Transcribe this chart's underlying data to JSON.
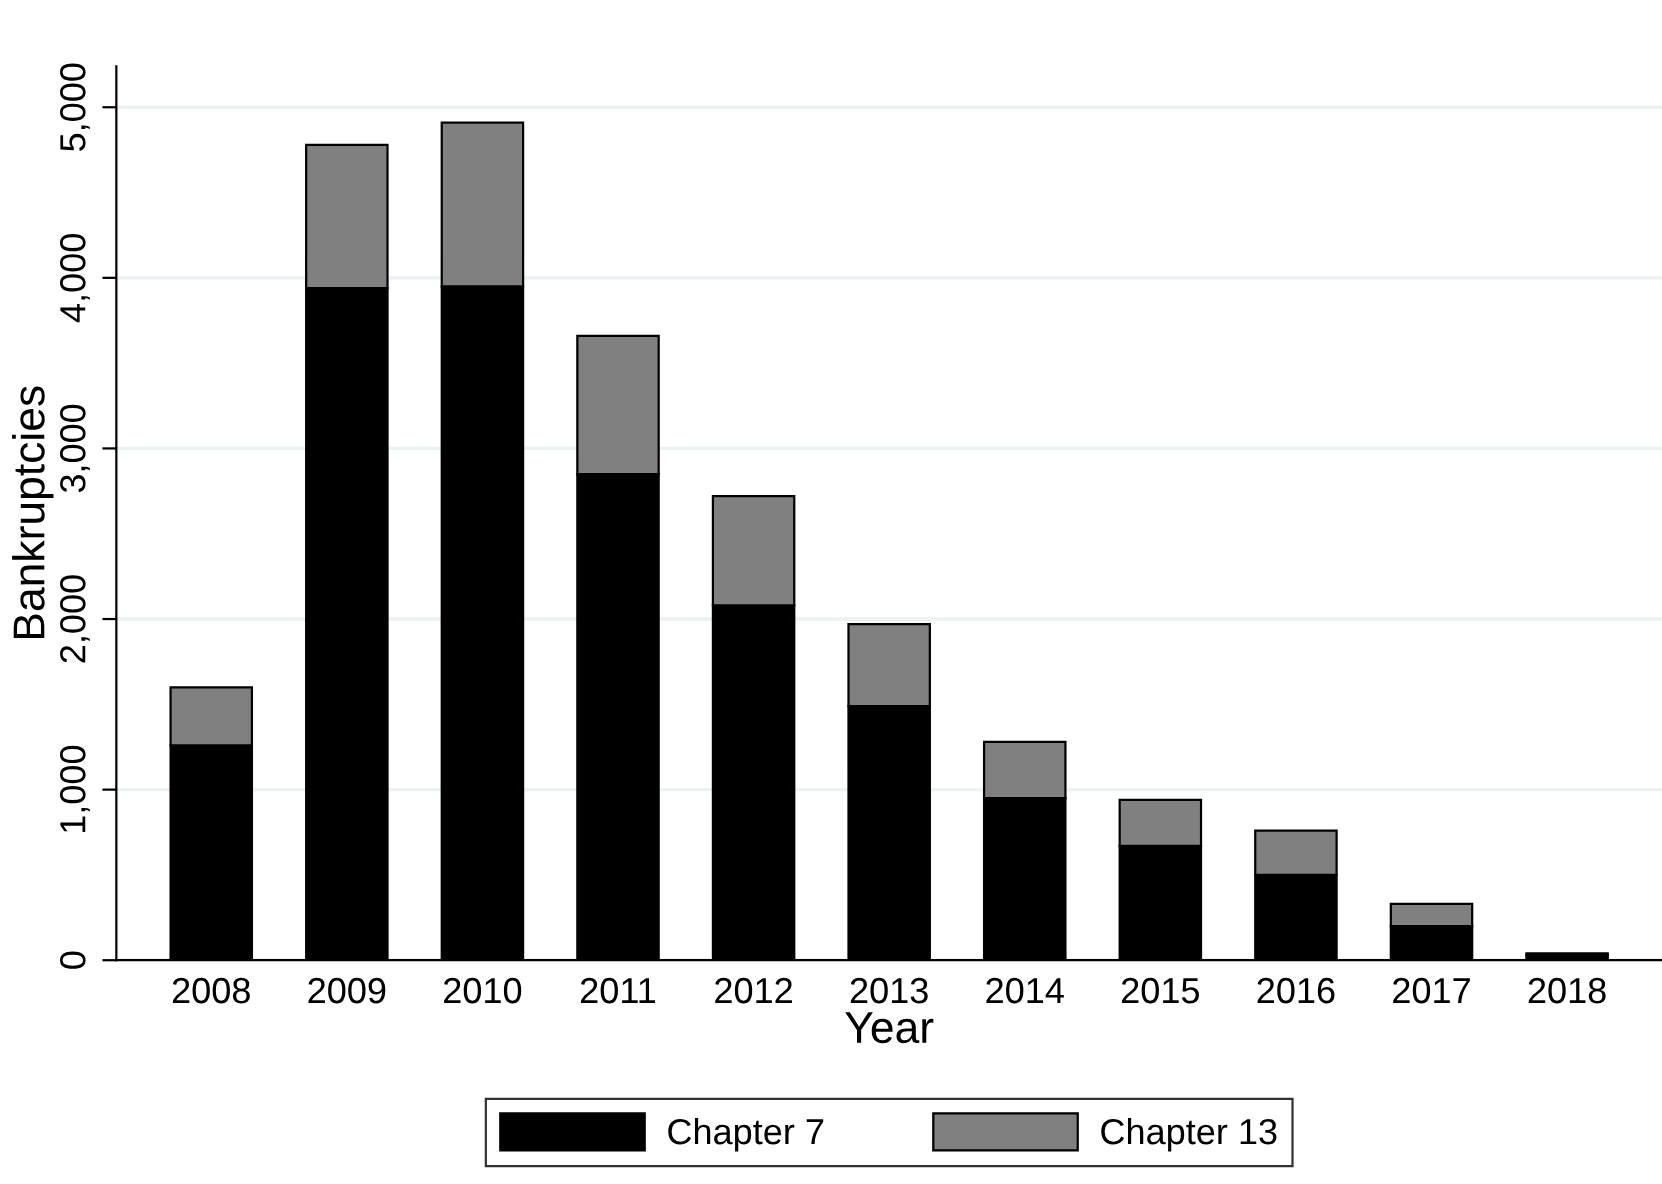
{
  "chart_data": {
    "type": "bar",
    "stacked": true,
    "xlabel": "Year",
    "ylabel": "Bankruptcies",
    "categories": [
      "2008",
      "2009",
      "2010",
      "2011",
      "2012",
      "2013",
      "2014",
      "2015",
      "2016",
      "2017",
      "2018"
    ],
    "series": [
      {
        "name": "Chapter 7",
        "color": "#000000",
        "values": [
          1260,
          3940,
          3950,
          2850,
          2080,
          1490,
          950,
          670,
          500,
          200,
          30
        ]
      },
      {
        "name": "Chapter 13",
        "color": "#808080",
        "values": [
          340,
          840,
          960,
          810,
          640,
          480,
          330,
          270,
          260,
          130,
          10
        ]
      }
    ],
    "ylim": [
      0,
      5240
    ],
    "yticks": [
      {
        "value": 0,
        "label": "0"
      },
      {
        "value": 1000,
        "label": "1,000"
      },
      {
        "value": 2000,
        "label": "2,000"
      },
      {
        "value": 3000,
        "label": "3,000"
      },
      {
        "value": 4000,
        "label": "4,000"
      },
      {
        "value": 5000,
        "label": "5,000"
      }
    ],
    "grid": "y",
    "legend": "bottom"
  }
}
